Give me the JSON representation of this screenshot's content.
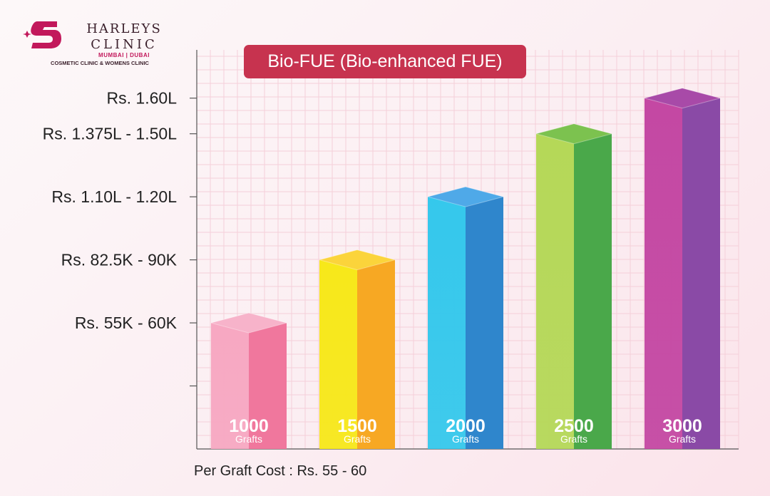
{
  "brand": {
    "line1": "HARLEYS",
    "line2": "CLINIC",
    "locations": "MUMBAI | DUBAI",
    "tagline": "COSMETIC CLINIC & WOMENS CLINIC",
    "color": "#c2185b"
  },
  "footnote": "Per Graft Cost : Rs. 55 - 60",
  "chart_data": {
    "type": "bar",
    "title": "Bio-FUE (Bio-enhanced FUE)",
    "categories": [
      "1000 Grafts",
      "1500 Grafts",
      "2000 Grafts",
      "2500 Grafts",
      "3000 Grafts"
    ],
    "series": [
      {
        "values": [
          57500,
          86250,
          115000,
          143750,
          160000
        ]
      }
    ],
    "bar_labels": [
      {
        "number": "1000",
        "unit": "Grafts"
      },
      {
        "number": "1500",
        "unit": "Grafts"
      },
      {
        "number": "2000",
        "unit": "Grafts"
      },
      {
        "number": "2500",
        "unit": "Grafts"
      },
      {
        "number": "3000",
        "unit": "Grafts"
      }
    ],
    "y_ticks": [
      {
        "value": 28750,
        "label": ""
      },
      {
        "value": 57500,
        "label": "Rs. 55K - 60K"
      },
      {
        "value": 86250,
        "label": "Rs. 82.5K - 90K"
      },
      {
        "value": 115000,
        "label": "Rs. 1.10L - 1.20L"
      },
      {
        "value": 143750,
        "label": "Rs. 1.375L - 1.50L"
      },
      {
        "value": 160000,
        "label": "Rs. 1.60L"
      }
    ],
    "ylim": [
      0,
      182000
    ],
    "grid": true,
    "bar_colors": [
      [
        "#f7a8c2",
        "#f0779d",
        "#f7b3ca"
      ],
      [
        "#f7e81a",
        "#f7a823",
        "#fbd43b"
      ],
      [
        "#35c8ec",
        "#2f86cc",
        "#4fa9e8"
      ],
      [
        "#b5d858",
        "#4aa84a",
        "#7cc24f"
      ],
      [
        "#c448a3",
        "#8a4aa6",
        "#a84aa8"
      ]
    ],
    "grid_color": "#f5cfd9",
    "axis_color": "#555555"
  }
}
